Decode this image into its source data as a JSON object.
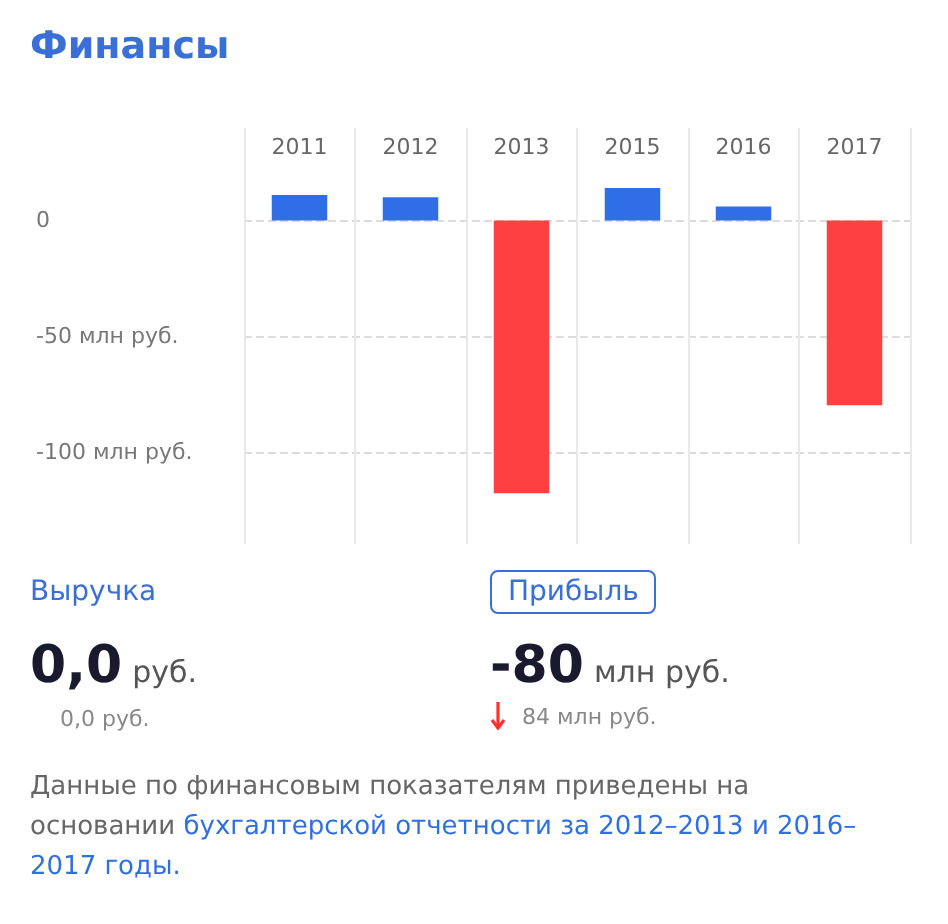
{
  "chart_data": {
    "type": "bar",
    "title": "Финансы",
    "categories": [
      "2011",
      "2012",
      "2013",
      "2015",
      "2016",
      "2017"
    ],
    "values": [
      11,
      10,
      -118,
      14,
      6,
      -80
    ],
    "colors": [
      "#306ee8",
      "#306ee8",
      "#ff4040",
      "#306ee8",
      "#306ee8",
      "#ff4040"
    ],
    "ylim": [
      -140,
      40
    ],
    "yticks": [
      {
        "value": -100,
        "label": "-100 млн руб."
      },
      {
        "value": -50,
        "label": "-50 млн руб."
      },
      0
    ],
    "grid": true,
    "annotations": [
      "Выручка",
      "Прибыль",
      "0,0 руб.",
      "-80 млн руб.",
      "0,0 руб.",
      "84 млн руб.",
      "Данные по финансовым показателям приведены на основании",
      "бухгалтерской отчетности за 2012–2013 и 2016–2017 годы."
    ]
  }
}
